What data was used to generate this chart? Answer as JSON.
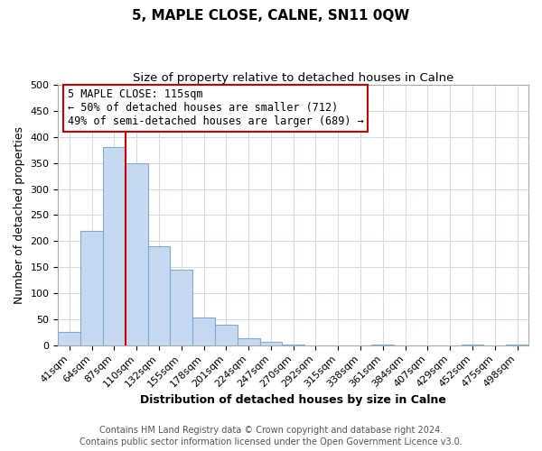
{
  "title": "5, MAPLE CLOSE, CALNE, SN11 0QW",
  "subtitle": "Size of property relative to detached houses in Calne",
  "xlabel": "Distribution of detached houses by size in Calne",
  "ylabel": "Number of detached properties",
  "bar_labels": [
    "41sqm",
    "64sqm",
    "87sqm",
    "110sqm",
    "132sqm",
    "155sqm",
    "178sqm",
    "201sqm",
    "224sqm",
    "247sqm",
    "270sqm",
    "292sqm",
    "315sqm",
    "338sqm",
    "361sqm",
    "384sqm",
    "407sqm",
    "429sqm",
    "452sqm",
    "475sqm",
    "498sqm"
  ],
  "bar_values": [
    25,
    220,
    380,
    350,
    190,
    145,
    53,
    40,
    13,
    7,
    2,
    0,
    0,
    0,
    1,
    0,
    0,
    0,
    1,
    0,
    1
  ],
  "bar_color": "#c6d9f0",
  "bar_edge_color": "#7eadd4",
  "vline_color": "#cc0000",
  "vline_x_index": 3,
  "annotation_title": "5 MAPLE CLOSE: 115sqm",
  "annotation_line1": "← 50% of detached houses are smaller (712)",
  "annotation_line2": "49% of semi-detached houses are larger (689) →",
  "annotation_box_color": "#ffffff",
  "annotation_box_edge": "#cc0000",
  "ylim": [
    0,
    500
  ],
  "yticks": [
    0,
    50,
    100,
    150,
    200,
    250,
    300,
    350,
    400,
    450,
    500
  ],
  "footer1": "Contains HM Land Registry data © Crown copyright and database right 2024.",
  "footer2": "Contains public sector information licensed under the Open Government Licence v3.0.",
  "title_fontsize": 11,
  "subtitle_fontsize": 9.5,
  "xlabel_fontsize": 9,
  "ylabel_fontsize": 9,
  "footer_fontsize": 7,
  "tick_fontsize": 8,
  "annotation_title_fontsize": 9,
  "annotation_text_fontsize": 8.5,
  "grid_color": "#d0dce8"
}
